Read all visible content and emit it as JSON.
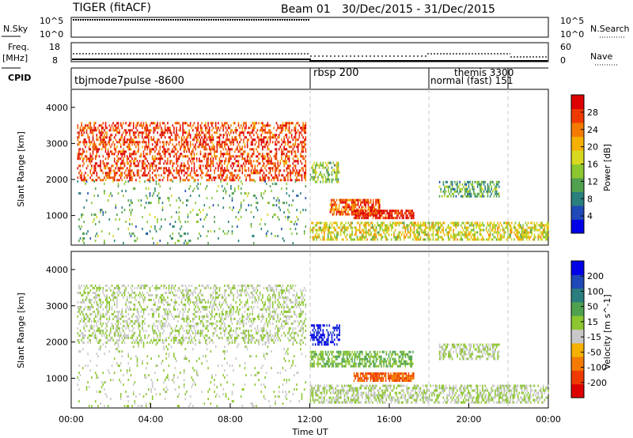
{
  "header": {
    "radar": "TIGER (fitACF)",
    "beam": "Beam 01",
    "date_range": "30/Dec/2015 - 31/Dec/2015"
  },
  "nsky": {
    "label": "N.Sky",
    "ticks_left": [
      "10^5",
      "10^0"
    ],
    "ticks_right": [
      "10^5",
      "10^0"
    ],
    "right_label": "N.Search"
  },
  "freq": {
    "label_line1": "Freq.",
    "label_line2": "[MHz]",
    "ticks_left": [
      "18",
      "8"
    ],
    "ticks_right": [
      "60",
      "0"
    ],
    "right_label": "Nave"
  },
  "cpid": {
    "label": "CPID",
    "modes": [
      {
        "name": "tbjmode7pulse -8600",
        "start_hour": 0
      },
      {
        "name": "rbsp 200",
        "start_hour": 12
      },
      {
        "name": "themis 3300",
        "start_hour": 18
      },
      {
        "name": "normal (fast) 151",
        "start_hour": 18
      },
      {
        "name": "",
        "start_hour": 22
      }
    ]
  },
  "x_axis": {
    "label": "Time UT",
    "ticks": [
      "00:00",
      "04:00",
      "08:00",
      "12:00",
      "16:00",
      "20:00",
      "00:00"
    ]
  },
  "chart_data": [
    {
      "type": "heatmap",
      "ylabel": "Slant Range [km]",
      "ylim": [
        180,
        4500
      ],
      "yticks": [
        "1000",
        "2000",
        "3000",
        "4000"
      ],
      "xlim_hours": [
        0,
        24
      ],
      "colorbar": {
        "label": "Power [dB]",
        "ticks": [
          "28",
          "24",
          "20",
          "16",
          "12",
          "8",
          "4"
        ],
        "range": [
          0,
          30
        ],
        "colors": [
          "#0000e8",
          "#1f48b8",
          "#2a7e7e",
          "#4fa14f",
          "#8cc630",
          "#d8d820",
          "#f5b000",
          "#f57a00",
          "#ee3a00",
          "#dd0000"
        ]
      },
      "regions": [
        {
          "t": [
            0.3,
            11.8
          ],
          "r": [
            1950,
            3550
          ],
          "intensity": 0.85,
          "density": 0.45
        },
        {
          "t": [
            0.3,
            11.8
          ],
          "r": [
            200,
            1950
          ],
          "intensity": 0.35,
          "density": 0.08
        },
        {
          "t": [
            12.0,
            13.5
          ],
          "r": [
            1900,
            2450
          ],
          "intensity": 0.45,
          "density": 0.45
        },
        {
          "t": [
            13.0,
            15.5
          ],
          "r": [
            1000,
            1400
          ],
          "intensity": 0.8,
          "density": 0.7
        },
        {
          "t": [
            14.2,
            17.2
          ],
          "r": [
            900,
            1150
          ],
          "intensity": 0.92,
          "density": 0.8
        },
        {
          "t": [
            12.0,
            24.0
          ],
          "r": [
            300,
            800
          ],
          "intensity": 0.55,
          "density": 0.55
        },
        {
          "t": [
            18.5,
            21.5
          ],
          "r": [
            1500,
            1900
          ],
          "intensity": 0.35,
          "density": 0.5
        }
      ]
    },
    {
      "type": "heatmap",
      "ylabel": "Slant Range [km]",
      "ylim": [
        180,
        4500
      ],
      "yticks": [
        "1000",
        "2000",
        "3000",
        "4000"
      ],
      "xlim_hours": [
        0,
        24
      ],
      "colorbar": {
        "label": "Velocity [m s^-1]",
        "ticks": [
          "200",
          "100",
          "50",
          "15",
          "-15",
          "-50",
          "-100",
          "-200"
        ],
        "range": [
          -250,
          250
        ],
        "colors": [
          "#dd0000",
          "#ee3a00",
          "#f57a00",
          "#f5b000",
          "#c8c8c8",
          "#8cc630",
          "#4fa14f",
          "#2a7e7e",
          "#1f48b8",
          "#0000e8"
        ]
      },
      "regions": [
        {
          "t": [
            0.3,
            11.8
          ],
          "r": [
            1950,
            3550
          ],
          "intensity": 0.0,
          "density": 0.35
        },
        {
          "t": [
            0.3,
            11.8
          ],
          "r": [
            200,
            1950
          ],
          "intensity": 0.0,
          "density": 0.08
        },
        {
          "t": [
            12.0,
            13.5
          ],
          "r": [
            1900,
            2450
          ],
          "intensity": 0.9,
          "density": 0.45
        },
        {
          "t": [
            12.0,
            17.2
          ],
          "r": [
            1300,
            1700
          ],
          "intensity": 0.2,
          "density": 0.6
        },
        {
          "t": [
            14.2,
            17.2
          ],
          "r": [
            900,
            1150
          ],
          "intensity": -0.6,
          "density": 0.8
        },
        {
          "t": [
            12.0,
            24.0
          ],
          "r": [
            300,
            800
          ],
          "intensity": 0.0,
          "density": 0.55
        },
        {
          "t": [
            18.5,
            21.5
          ],
          "r": [
            1500,
            1900
          ],
          "intensity": 0.0,
          "density": 0.5
        }
      ]
    }
  ]
}
